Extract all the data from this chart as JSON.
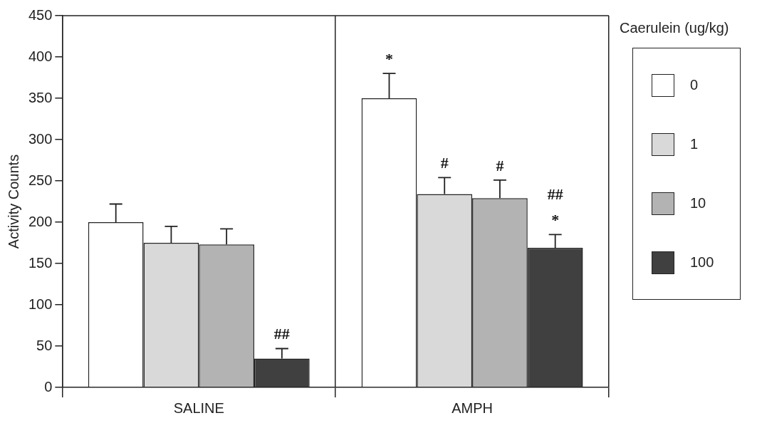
{
  "chart_data": {
    "type": "bar",
    "ylabel": "Activity Counts",
    "legend_title": "Caerulein (ug/kg)",
    "categories": [
      "SALINE",
      "AMPH"
    ],
    "series": [
      {
        "name": "0",
        "color": "#ffffff",
        "values": [
          200,
          350
        ],
        "errors": [
          22,
          30
        ],
        "value_labels": [
          null,
          "*"
        ]
      },
      {
        "name": "1",
        "color": "#d9d9d9",
        "values": [
          175,
          234
        ],
        "errors": [
          20,
          20
        ],
        "value_labels": [
          null,
          "#"
        ]
      },
      {
        "name": "10",
        "color": "#b3b3b3",
        "values": [
          173,
          229
        ],
        "errors": [
          19,
          22
        ],
        "value_labels": [
          null,
          "#"
        ]
      },
      {
        "name": "100",
        "color": "#404040",
        "values": [
          35,
          169
        ],
        "errors": [
          12,
          16
        ],
        "value_labels": [
          "##",
          "##\n*"
        ]
      }
    ],
    "ylim": [
      0,
      450
    ],
    "yticks": [
      0,
      50,
      100,
      150,
      200,
      250,
      300,
      350,
      400,
      450
    ],
    "grid": "x",
    "legend": "right"
  }
}
